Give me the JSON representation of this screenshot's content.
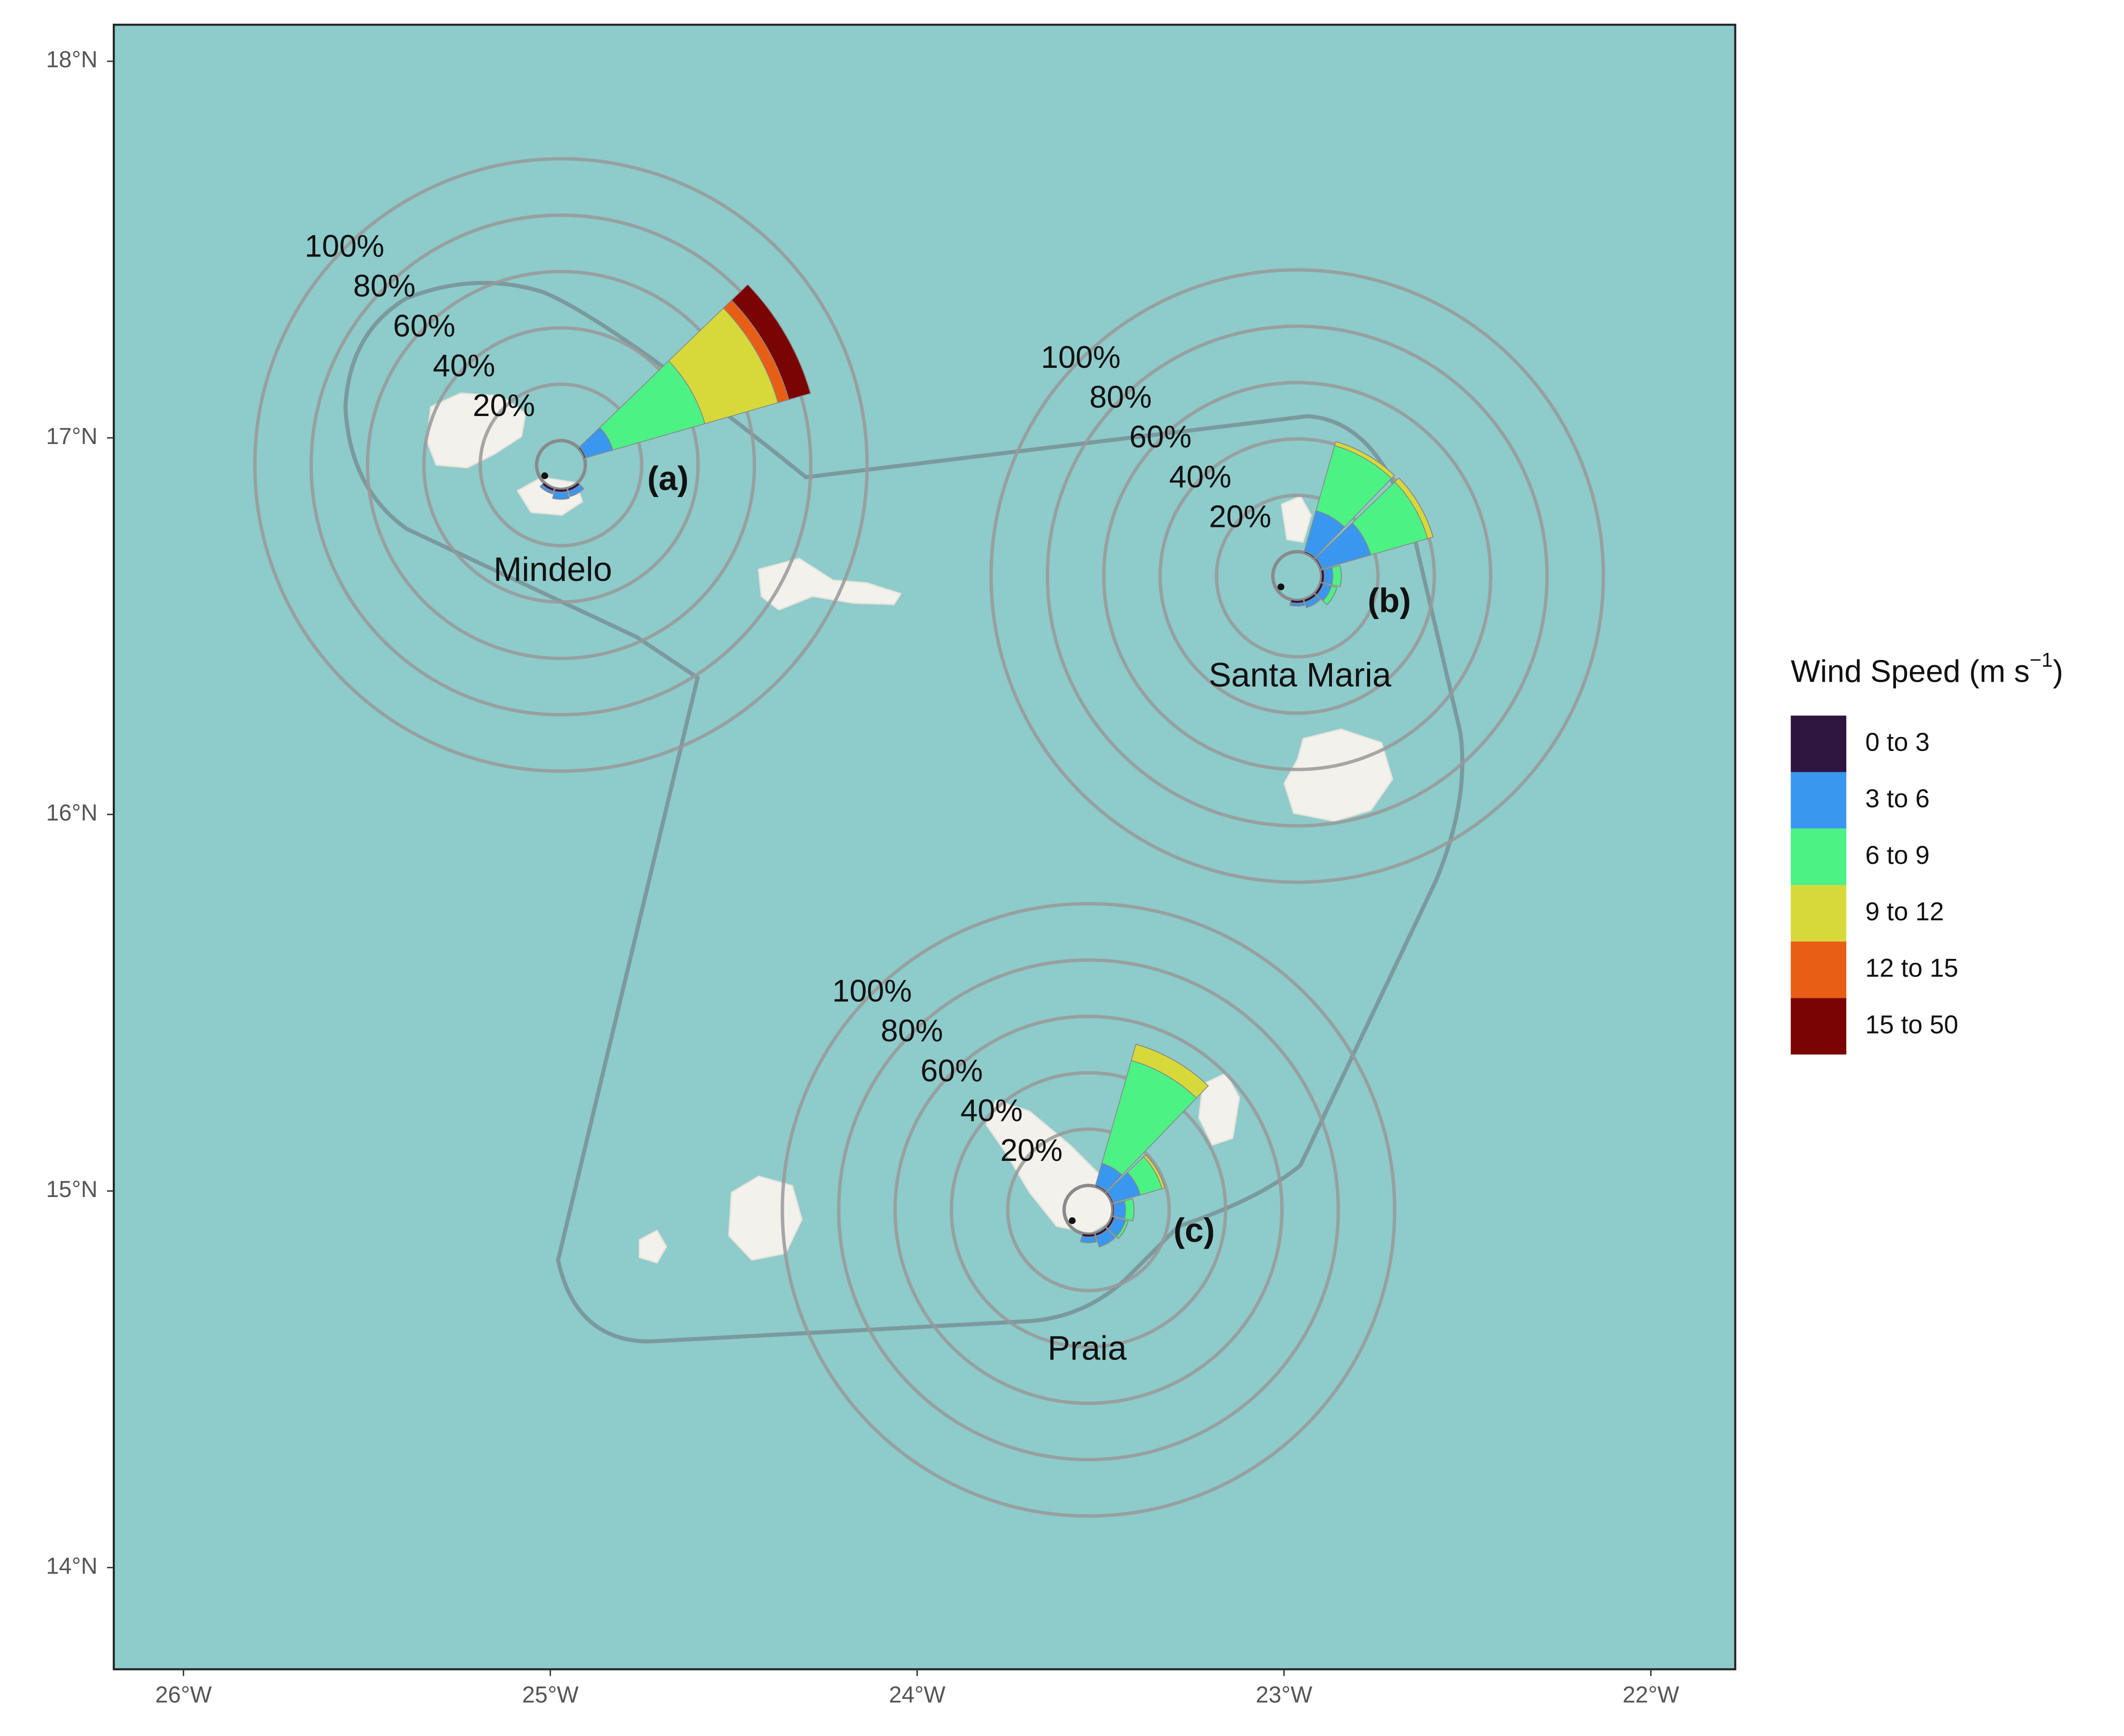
{
  "map": {
    "xlim": [
      -26.19,
      -21.77
    ],
    "ylim": [
      13.73,
      18.097
    ],
    "xticks": [
      {
        "value": -26,
        "label": "26°W"
      },
      {
        "value": -25,
        "label": "25°W"
      },
      {
        "value": -24,
        "label": "24°W"
      },
      {
        "value": -23,
        "label": "23°W"
      },
      {
        "value": -22,
        "label": "22°W"
      }
    ],
    "yticks": [
      {
        "value": 18,
        "label": "18°N"
      },
      {
        "value": 17,
        "label": "17°N"
      },
      {
        "value": 16,
        "label": "16°N"
      },
      {
        "value": 15,
        "label": "15°N"
      },
      {
        "value": 14,
        "label": "14°N"
      }
    ],
    "rings": [
      {
        "value": 20,
        "label": "20%"
      },
      {
        "value": 40,
        "label": "40%"
      },
      {
        "value": 60,
        "label": "60%"
      },
      {
        "value": 80,
        "label": "80%"
      },
      {
        "value": 100,
        "label": "100%"
      }
    ],
    "legend": {
      "title": "Wind Speed (m s",
      "superscript": "−1",
      "title_end": ")",
      "bins": [
        "0 to 3",
        "3 to 6",
        "6 to 9",
        "9 to 12",
        "12 to 15",
        "15 to 50"
      ],
      "colors": [
        "#2d1540",
        "#3a97f0",
        "#4cf283",
        "#d7d93a",
        "#e85e14",
        "#7a0403"
      ]
    },
    "stations": [
      {
        "name": "Mindelo",
        "label": "(a)",
        "lon": -24.971,
        "lat": 16.928,
        "petals": [
          {
            "direction": 60,
            "values": [
              0.5,
              10,
              34,
              27,
              4,
              8
            ]
          },
          {
            "direction": 150,
            "values": [
              1,
              2,
              0,
              0,
              0,
              0
            ]
          },
          {
            "direction": 180,
            "values": [
              1,
              2.5,
              0,
              0,
              0,
              0
            ]
          },
          {
            "direction": 210,
            "values": [
              1,
              1,
              0,
              0,
              0,
              0
            ]
          }
        ]
      },
      {
        "name": "Santa Maria",
        "label": "(b)",
        "lon": -22.964,
        "lat": 16.633,
        "petals": [
          {
            "direction": 30,
            "values": [
              0.5,
              15,
              24,
              1.5,
              0,
              0
            ]
          },
          {
            "direction": 60,
            "values": [
              0.5,
              18,
              21,
              2,
              0,
              0
            ]
          },
          {
            "direction": 90,
            "values": [
              1,
              3,
              3,
              0,
              0,
              0
            ]
          },
          {
            "direction": 120,
            "values": [
              1,
              3,
              2,
              0,
              0,
              0
            ]
          },
          {
            "direction": 150,
            "values": [
              1,
              2,
              0,
              0,
              0,
              0
            ]
          },
          {
            "direction": 180,
            "values": [
              1,
              1,
              0,
              0,
              0,
              0
            ]
          }
        ]
      },
      {
        "name": "Praia",
        "label": "(c)",
        "lon": -23.533,
        "lat": 14.95,
        "petals": [
          {
            "direction": 30,
            "values": [
              0.5,
              8,
              38,
              6,
              0,
              0
            ]
          },
          {
            "direction": 60,
            "values": [
              0.5,
              10,
              8,
              1,
              0,
              0
            ]
          },
          {
            "direction": 90,
            "values": [
              0.5,
              4,
              3,
              0,
              0,
              0
            ]
          },
          {
            "direction": 120,
            "values": [
              1,
              4,
              1,
              0,
              0,
              0
            ]
          },
          {
            "direction": 150,
            "values": [
              1,
              4,
              0,
              0,
              0,
              0
            ]
          },
          {
            "direction": 180,
            "values": [
              1,
              2,
              0,
              0,
              0,
              0
            ]
          }
        ]
      }
    ]
  }
}
